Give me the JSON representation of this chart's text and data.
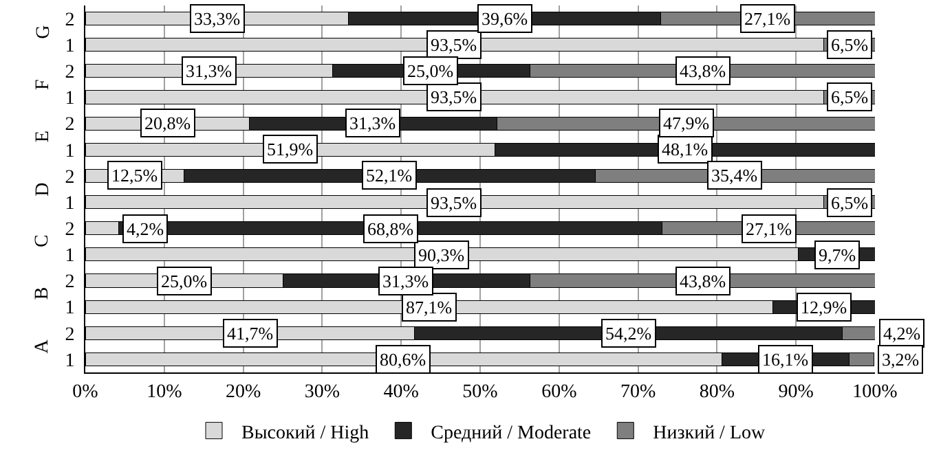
{
  "chart_data": {
    "type": "bar",
    "orientation": "horizontal",
    "stacked": true,
    "categories": [
      "2",
      "1",
      "2",
      "1",
      "2",
      "1",
      "2",
      "1",
      "2",
      "1",
      "2",
      "1",
      "2",
      "1"
    ],
    "annotations": [
      "G",
      "F",
      "E",
      "D",
      "C",
      "B",
      "A"
    ],
    "series": [
      {
        "name": "Высокий / High",
        "color": "#d9d9d9",
        "values": [
          33.3,
          93.5,
          31.3,
          93.5,
          20.8,
          51.9,
          12.5,
          93.5,
          4.2,
          90.3,
          25.0,
          87.1,
          41.7,
          80.6
        ],
        "value_labels": [
          "33,3%",
          "93,5%",
          "31,3%",
          "93,5%",
          "20,8%",
          "51,9%",
          "12,5%",
          "93,5%",
          "4,2%",
          "90,3%",
          "25,0%",
          "87,1%",
          "41,7%",
          "80,6%"
        ]
      },
      {
        "name": "Средний / Moderate",
        "color": "#262626",
        "values": [
          39.6,
          null,
          25.0,
          null,
          31.3,
          48.1,
          52.1,
          null,
          68.8,
          9.7,
          31.3,
          12.9,
          54.2,
          16.1
        ],
        "value_labels": [
          "39,6%",
          null,
          "25,0%",
          null,
          "31,3%",
          "48,1%",
          "52,1%",
          null,
          "68,8%",
          "9,7%",
          "31,3%",
          "12,9%",
          "54,2%",
          "16,1%"
        ]
      },
      {
        "name": "Низкий / Low",
        "color": "#7f7f7f",
        "values": [
          27.1,
          6.5,
          43.8,
          6.5,
          47.9,
          null,
          35.4,
          6.5,
          27.1,
          null,
          43.8,
          null,
          4.2,
          3.2
        ],
        "value_labels": [
          "27,1%",
          "6,5%",
          "43,8%",
          "6,5%",
          "47,9%",
          null,
          "35,4%",
          "6,5%",
          "27,1%",
          null,
          "43,8%",
          null,
          "4,2%",
          "3,2%"
        ]
      }
    ],
    "xlim": [
      0,
      100
    ],
    "xticks": [
      {
        "value": 0,
        "label": "0%"
      },
      {
        "value": 10,
        "label": "10%"
      },
      {
        "value": 20,
        "label": "20%"
      },
      {
        "value": 30,
        "label": "30%"
      },
      {
        "value": 40,
        "label": "40%"
      },
      {
        "value": 50,
        "label": "50%"
      },
      {
        "value": 60,
        "label": "60%"
      },
      {
        "value": 70,
        "label": "70%"
      },
      {
        "value": 80,
        "label": "80%"
      },
      {
        "value": 90,
        "label": "90%"
      },
      {
        "value": 100,
        "label": "100%"
      }
    ],
    "grid": "x",
    "legend": "bottom"
  }
}
